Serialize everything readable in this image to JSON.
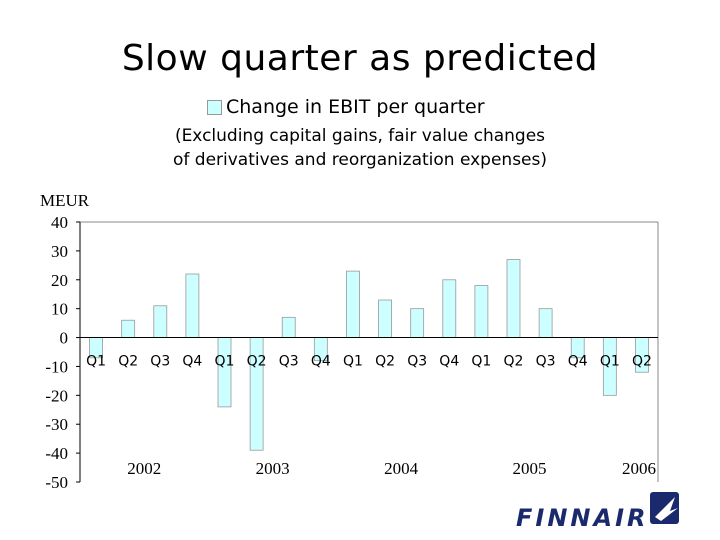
{
  "chart_data": {
    "type": "bar",
    "title": "Slow quarter as predicted",
    "legend": [
      "Change in EBIT per quarter"
    ],
    "subtitle_lines": [
      "(Excluding capital gains, fair value changes",
      "of derivatives and reorganization expenses)"
    ],
    "ylabel": "MEUR",
    "ylim": [
      -50,
      40
    ],
    "yticks": [
      40,
      30,
      20,
      10,
      0,
      -10,
      -20,
      -30,
      -40,
      -50
    ],
    "categories": [
      "Q1",
      "Q2",
      "Q3",
      "Q4",
      "Q1",
      "Q2",
      "Q3",
      "Q4",
      "Q1",
      "Q2",
      "Q3",
      "Q4",
      "Q1",
      "Q2",
      "Q3",
      "Q4",
      "Q1",
      "Q2"
    ],
    "values": [
      -7,
      6,
      11,
      22,
      -24,
      -39,
      7,
      -8,
      23,
      13,
      10,
      20,
      18,
      27,
      10,
      -7,
      -20,
      -12
    ],
    "year_labels": [
      "2002",
      "2003",
      "2004",
      "2005",
      "2006"
    ],
    "bar_color": "#ccffff",
    "bar_border": "#999999"
  },
  "brand": {
    "logo_text": "FINNAIR",
    "color": "#1a2a6c"
  }
}
